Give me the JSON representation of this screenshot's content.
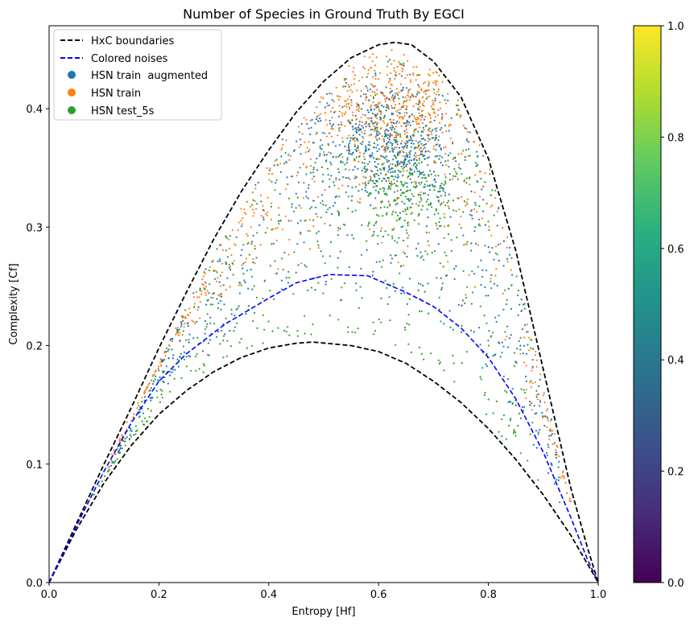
{
  "chart_data": {
    "type": "scatter",
    "title": "Number of Species in Ground Truth By EGCI",
    "xlabel": "Entropy [Hf]",
    "ylabel": "Complexity [Cf]",
    "xlim": [
      0,
      1
    ],
    "ylim": [
      0,
      0.47
    ],
    "x_ticks": [
      "0.0",
      "0.2",
      "0.4",
      "0.6",
      "0.8",
      "1.0"
    ],
    "y_ticks": [
      "0.0",
      "0.1",
      "0.2",
      "0.3",
      "0.4"
    ],
    "legend_position": "upper-left",
    "lines": [
      {
        "name": "HxC boundaries",
        "color": "#000000",
        "style": "dashed",
        "upper": {
          "x": [
            0,
            0.05,
            0.1,
            0.15,
            0.2,
            0.25,
            0.3,
            0.35,
            0.4,
            0.45,
            0.5,
            0.55,
            0.6,
            0.63,
            0.66,
            0.7,
            0.75,
            0.8,
            0.85,
            0.9,
            0.95,
            0.98,
            1.0
          ],
          "y": [
            0,
            0.05,
            0.1,
            0.148,
            0.198,
            0.245,
            0.29,
            0.33,
            0.365,
            0.397,
            0.423,
            0.443,
            0.454,
            0.456,
            0.454,
            0.44,
            0.41,
            0.358,
            0.28,
            0.18,
            0.08,
            0.03,
            0
          ]
        },
        "lower": {
          "x": [
            0,
            0.05,
            0.1,
            0.15,
            0.2,
            0.25,
            0.3,
            0.35,
            0.4,
            0.45,
            0.48,
            0.55,
            0.6,
            0.65,
            0.7,
            0.75,
            0.8,
            0.85,
            0.9,
            0.95,
            0.98,
            1.0
          ],
          "y": [
            0,
            0.045,
            0.084,
            0.116,
            0.142,
            0.162,
            0.178,
            0.19,
            0.198,
            0.202,
            0.203,
            0.2,
            0.195,
            0.185,
            0.17,
            0.152,
            0.13,
            0.104,
            0.074,
            0.04,
            0.016,
            0
          ]
        }
      },
      {
        "name": "Colored noises",
        "color": "#0000ff",
        "style": "dashed",
        "x": [
          0,
          0.05,
          0.1,
          0.15,
          0.2,
          0.25,
          0.32,
          0.4,
          0.45,
          0.51,
          0.58,
          0.65,
          0.7,
          0.75,
          0.8,
          0.85,
          0.9,
          0.95,
          0.98,
          1.0
        ],
        "y": [
          0,
          0.048,
          0.094,
          0.135,
          0.17,
          0.193,
          0.218,
          0.24,
          0.253,
          0.26,
          0.259,
          0.245,
          0.233,
          0.215,
          0.19,
          0.155,
          0.11,
          0.055,
          0.02,
          0
        ]
      }
    ],
    "series": [
      {
        "name": "HSN train  augmented",
        "color": "#1f77b4",
        "n_points": 1100,
        "region": {
          "h_range": [
            0.06,
            0.93
          ],
          "shape": "band",
          "core": [
            0.62,
            0.37
          ]
        }
      },
      {
        "name": "HSN train",
        "color": "#ff7f0e",
        "n_points": 1000,
        "region": {
          "h_range": [
            0.1,
            0.95
          ],
          "shape": "band",
          "core": [
            0.63,
            0.4
          ]
        }
      },
      {
        "name": "HSN test_5s",
        "color": "#2ca02c",
        "n_points": 750,
        "region": {
          "h_range": [
            0.06,
            0.9
          ],
          "shape": "band",
          "core": [
            0.65,
            0.33
          ]
        }
      }
    ],
    "colorbar": {
      "min": 0,
      "max": 1,
      "ticks": [
        "0.0",
        "0.2",
        "0.4",
        "0.6",
        "0.8",
        "1.0"
      ],
      "colormap": [
        "#440154",
        "#472d7b",
        "#3b528b",
        "#2c728e",
        "#21918c",
        "#28ae80",
        "#5ec962",
        "#addc30",
        "#fde725"
      ]
    }
  }
}
